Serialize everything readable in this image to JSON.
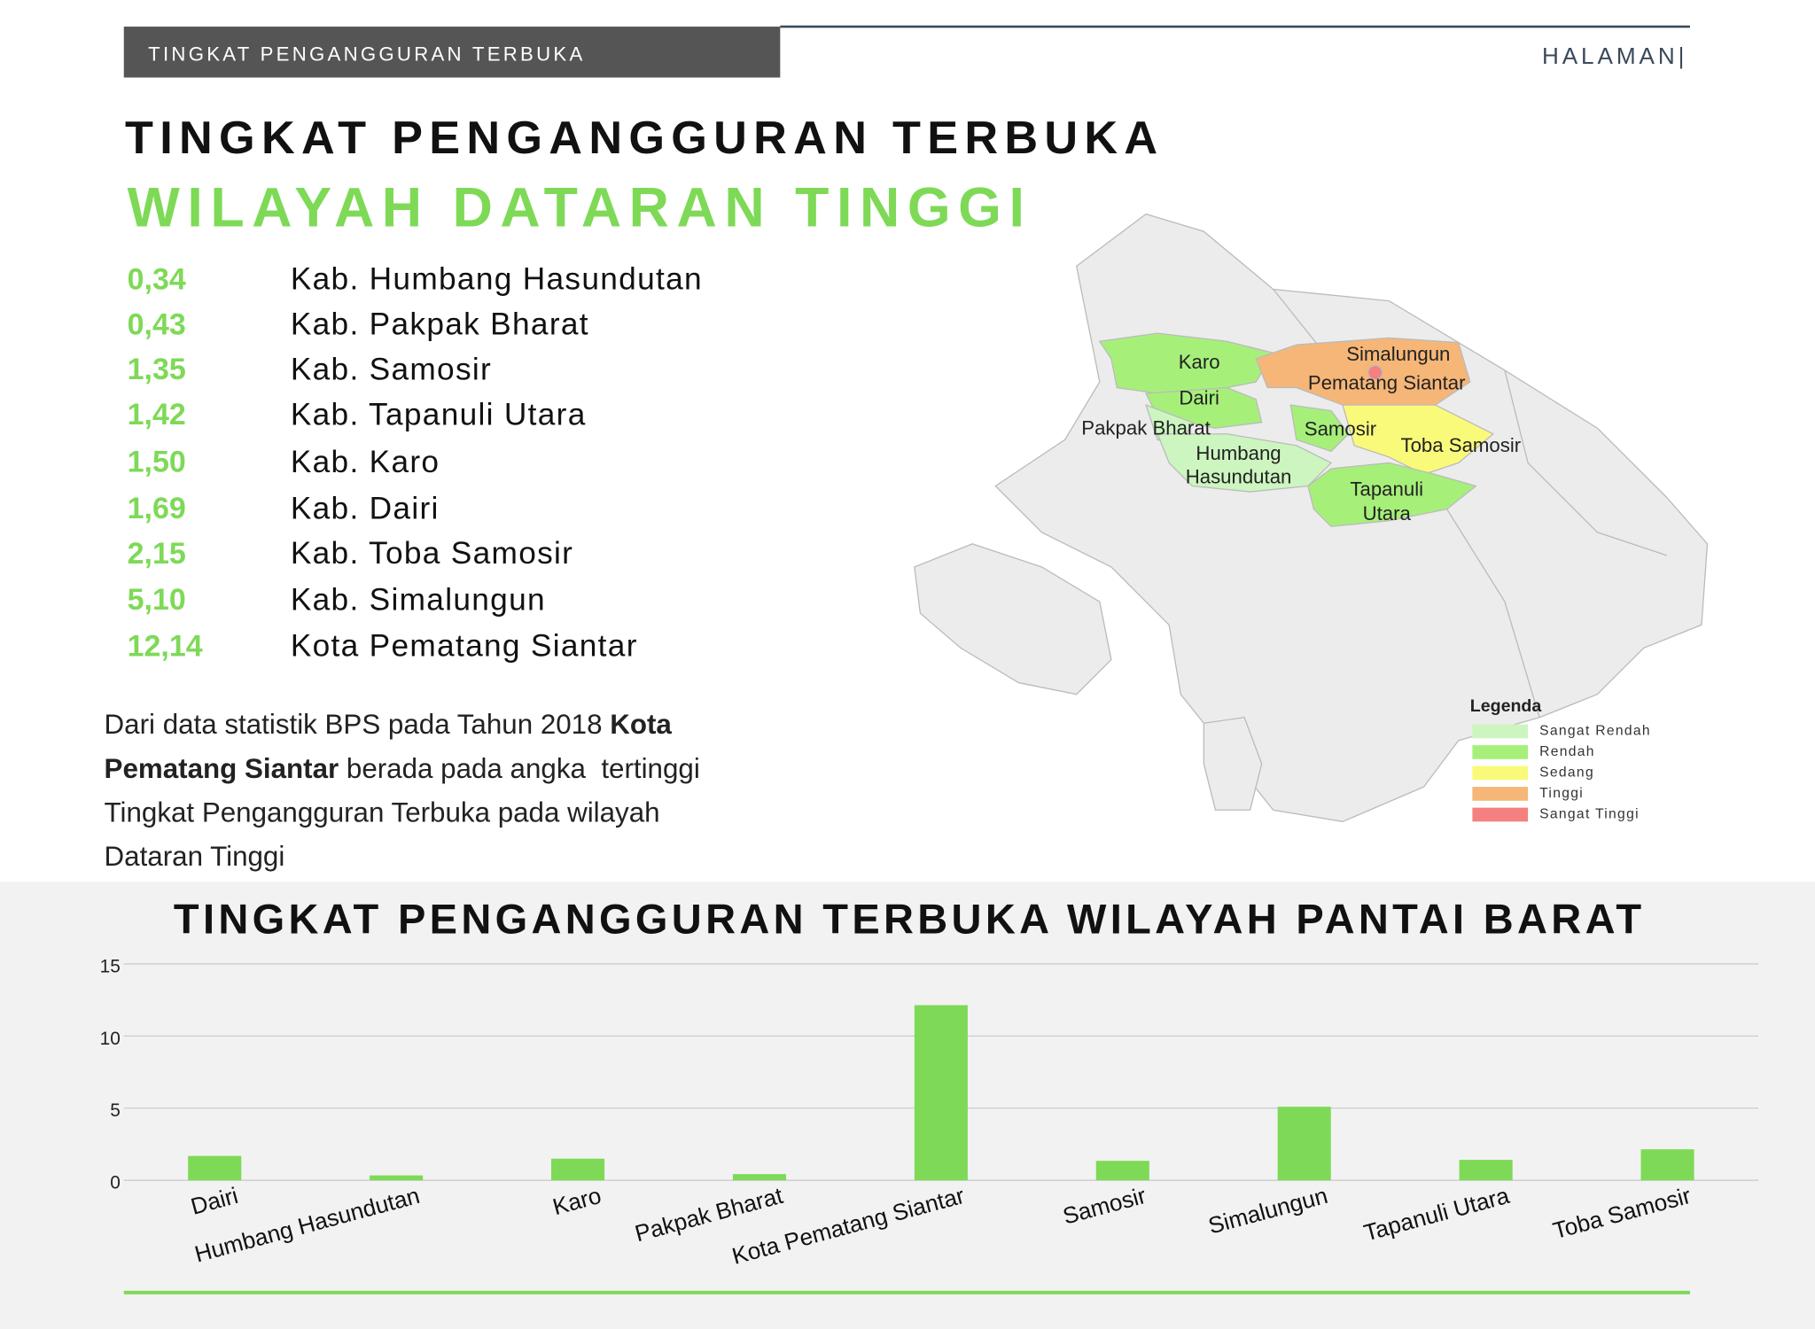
{
  "header": {
    "section": "TINGKAT PENGANGGURAN TERBUKA",
    "page": "HALAMAN|"
  },
  "title": {
    "line1": "TINGKAT PENGANGGURAN TERBUKA",
    "line2": "WILAYAH DATARAN TINGGI"
  },
  "list": [
    {
      "value": "0,34",
      "name": "Kab. Humbang Hasundutan"
    },
    {
      "value": "0,43",
      "name": "Kab. Pakpak Bharat"
    },
    {
      "value": "1,35",
      "name": "Kab. Samosir"
    },
    {
      "value": "1,42",
      "name": "Kab. Tapanuli Utara"
    },
    {
      "value": "1,50",
      "name": "Kab. Karo"
    },
    {
      "value": "1,69",
      "name": "Kab. Dairi"
    },
    {
      "value": "2,15",
      "name": "Kab. Toba Samosir"
    },
    {
      "value": "5,10",
      "name": "Kab. Simalungun"
    },
    {
      "value": "12,14",
      "name": "Kota Pematang Siantar"
    }
  ],
  "paragraph": {
    "lines": [
      [
        "Dari data statistik BPS pada Tahun 2018 ",
        "Kota"
      ],
      [
        "Pematang Siantar",
        " berada pada angka  tertinggi"
      ],
      [
        "Tingkat Pengangguran Terbuka pada wilayah"
      ],
      [
        "Dataran Tinggi"
      ]
    ]
  },
  "map": {
    "labels": [
      "Karo",
      "Simalungun",
      "Pematang Siantar",
      "Dairi",
      "Pakpak Bharat",
      "Samosir",
      "Toba Samosir",
      "Humbang",
      "Hasundutan",
      "Tapanuli",
      "Utara"
    ],
    "legend": {
      "title": "Legenda",
      "items": [
        {
          "label": "Sangat Rendah",
          "color": "#cdf5c0"
        },
        {
          "label": "Rendah",
          "color": "#a6f07a"
        },
        {
          "label": "Sedang",
          "color": "#fafa7a"
        },
        {
          "label": "Tinggi",
          "color": "#f5b678"
        },
        {
          "label": "Sangat Tinggi",
          "color": "#f58080"
        }
      ]
    }
  },
  "chart_data": {
    "type": "bar",
    "title": "TINGKAT PENGANGGURAN TERBUKA WILAYAH PANTAI BARAT",
    "categories": [
      "Dairi",
      "Humbang Hasundutan",
      "Karo",
      "Pakpak Bharat",
      "Kota Pematang Siantar",
      "Samosir",
      "Simalungun",
      "Tapanuli Utara",
      "Toba Samosir"
    ],
    "values": [
      1.69,
      0.34,
      1.5,
      0.43,
      12.14,
      1.35,
      5.1,
      1.42,
      2.15
    ],
    "color": "#7ed957",
    "ylim": [
      0,
      15
    ],
    "yticks": [
      0,
      5,
      10,
      15
    ],
    "grid": true
  }
}
